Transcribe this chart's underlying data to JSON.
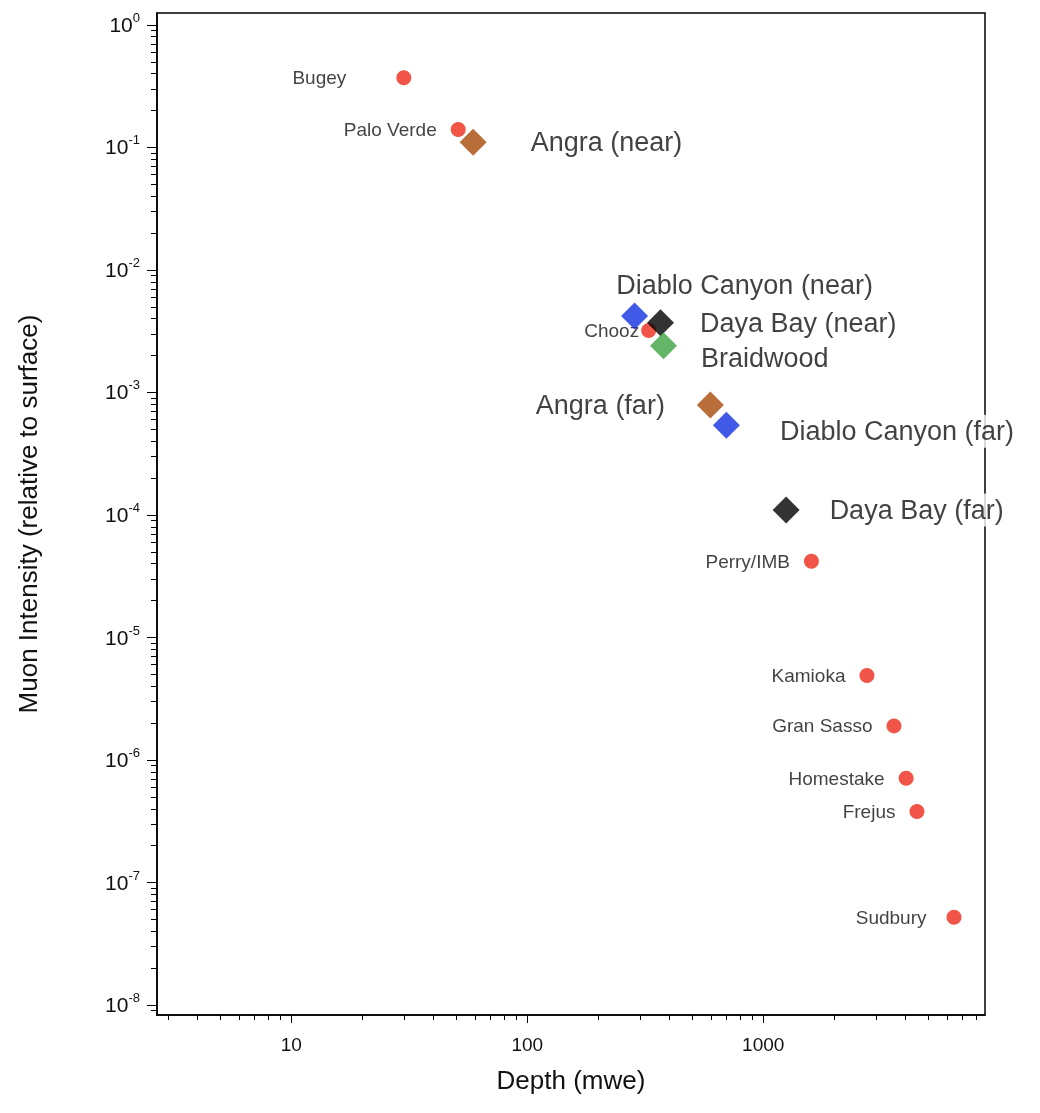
{
  "chart_data": {
    "type": "scatter",
    "xlabel": "Depth (mwe)",
    "ylabel": "Muon Intensity (relative to surface)",
    "log": "xy",
    "grid": false,
    "legend": false,
    "xlim": [
      2.7,
      8700
    ],
    "xticks": [
      10,
      100,
      1000
    ],
    "ylim": [
      8.3e-09,
      1.25
    ],
    "yticks": [
      {
        "value": 1,
        "label": "10$^{0}$"
      },
      {
        "value": 0.1,
        "label": "10$^{-1}$"
      },
      {
        "value": 0.01,
        "label": "10$^{-2}$"
      },
      {
        "value": 0.001,
        "label": "10$^{-3}$"
      },
      {
        "value": 0.0001,
        "label": "10$^{-4}$"
      },
      {
        "value": 1e-05,
        "label": "10$^{-5}$"
      },
      {
        "value": 1e-06,
        "label": "10$^{-6}$"
      },
      {
        "value": 1e-07,
        "label": "10$^{-7}$"
      },
      {
        "value": 1e-08,
        "label": "10$^{-8}$"
      }
    ],
    "series": [
      {
        "name": "Bugey",
        "color": "#ee2a1a",
        "marker": "circle",
        "x": [
          30
        ],
        "values": [
          0.37
        ]
      },
      {
        "name": "Palo Verde",
        "color": "#ee2a1a",
        "marker": "circle",
        "x": [
          51
        ],
        "values": [
          0.14
        ]
      },
      {
        "name": "Chooz",
        "color": "#ee2a1a",
        "marker": "circle",
        "x": [
          327
        ],
        "values": [
          0.0032
        ]
      },
      {
        "name": "Perry/IMB",
        "color": "#ee2a1a",
        "marker": "circle",
        "x": [
          1600
        ],
        "values": [
          4.2e-05
        ]
      },
      {
        "name": "Kamioka",
        "color": "#ee2a1a",
        "marker": "circle",
        "x": [
          2750
        ],
        "values": [
          4.9e-06
        ]
      },
      {
        "name": "Gran Sasso",
        "color": "#ee2a1a",
        "marker": "circle",
        "x": [
          3580
        ],
        "values": [
          1.9e-06
        ]
      },
      {
        "name": "Homestake",
        "color": "#ee2a1a",
        "marker": "circle",
        "x": [
          4030
        ],
        "values": [
          7.1e-07
        ]
      },
      {
        "name": "Frejus",
        "color": "#ee2a1a",
        "marker": "circle",
        "x": [
          4480
        ],
        "values": [
          3.8e-07
        ]
      },
      {
        "name": "Sudbury",
        "color": "#ee2a1a",
        "marker": "circle",
        "x": [
          6430
        ],
        "values": [
          5.2e-08
        ]
      },
      {
        "name": "Angra (near)",
        "color": "#a84a08",
        "marker": "diamond",
        "x": [
          59
        ],
        "values": [
          0.11
        ]
      },
      {
        "name": "Diablo Canyon (near)",
        "color": "#1030e0",
        "marker": "diamond",
        "x": [
          285
        ],
        "values": [
          0.0042
        ]
      },
      {
        "name": "Daya Bay (near)",
        "color": "#000000",
        "marker": "diamond",
        "x": [
          367
        ],
        "values": [
          0.0037
        ]
      },
      {
        "name": "Braidwood",
        "color": "#3fa343",
        "marker": "diamond",
        "x": [
          378
        ],
        "values": [
          0.0024
        ]
      },
      {
        "name": "Angra (far)",
        "color": "#a84a08",
        "marker": "diamond",
        "x": [
          597
        ],
        "values": [
          0.00079
        ]
      },
      {
        "name": "Diablo Canyon (far)",
        "color": "#1030e0",
        "marker": "diamond",
        "x": [
          698
        ],
        "values": [
          0.00054
        ]
      },
      {
        "name": "Daya Bay (far)",
        "color": "#000000",
        "marker": "diamond",
        "x": [
          1250
        ],
        "values": [
          0.00011
        ]
      }
    ]
  }
}
